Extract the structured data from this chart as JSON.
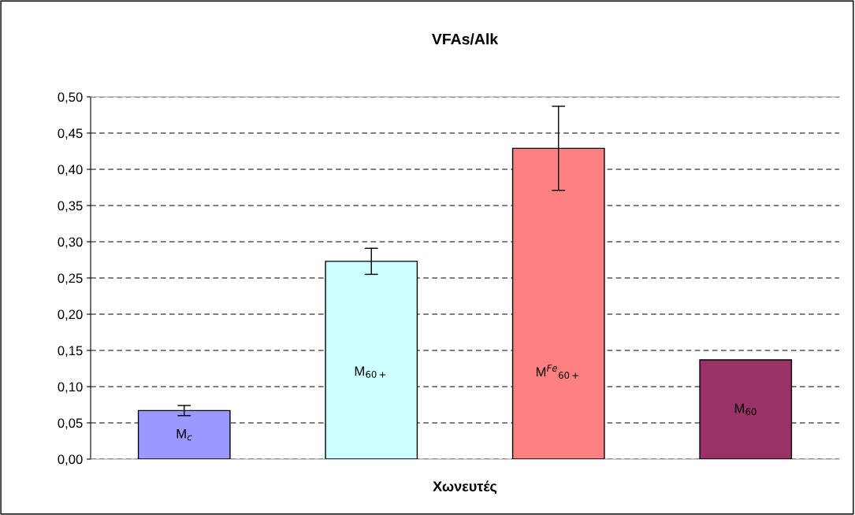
{
  "chart_data": {
    "type": "bar",
    "title": "VFAs/Alk",
    "xlabel": "Χωνευτές",
    "categories": [
      "M$_{c}$",
      "M$_{60+}$",
      "M$^{Fe}$$_{60+}$",
      "M$_{60}$"
    ],
    "values": [
      0.067,
      0.273,
      0.429,
      0.137
    ],
    "errors": [
      0.007,
      0.018,
      0.058,
      null
    ],
    "colors": [
      "#9999ff",
      "#ccffff",
      "#ff8080",
      "#993366"
    ],
    "ylim": [
      0,
      0.5
    ],
    "yticks": [
      {
        "value": 0,
        "label": "0,00"
      },
      {
        "value": 0.05,
        "label": "0,05"
      },
      {
        "value": 0.1,
        "label": "0,10"
      },
      {
        "value": 0.15,
        "label": "0,15"
      },
      {
        "value": 0.2,
        "label": "0,20"
      },
      {
        "value": 0.25,
        "label": "0,25"
      },
      {
        "value": 0.3,
        "label": "0,30"
      },
      {
        "value": 0.35,
        "label": "0,35"
      },
      {
        "value": 0.4,
        "label": "0,40"
      },
      {
        "value": 0.45,
        "label": "0,45"
      },
      {
        "value": 0.5,
        "label": "0,50"
      }
    ],
    "grid": "y",
    "legend": false
  }
}
